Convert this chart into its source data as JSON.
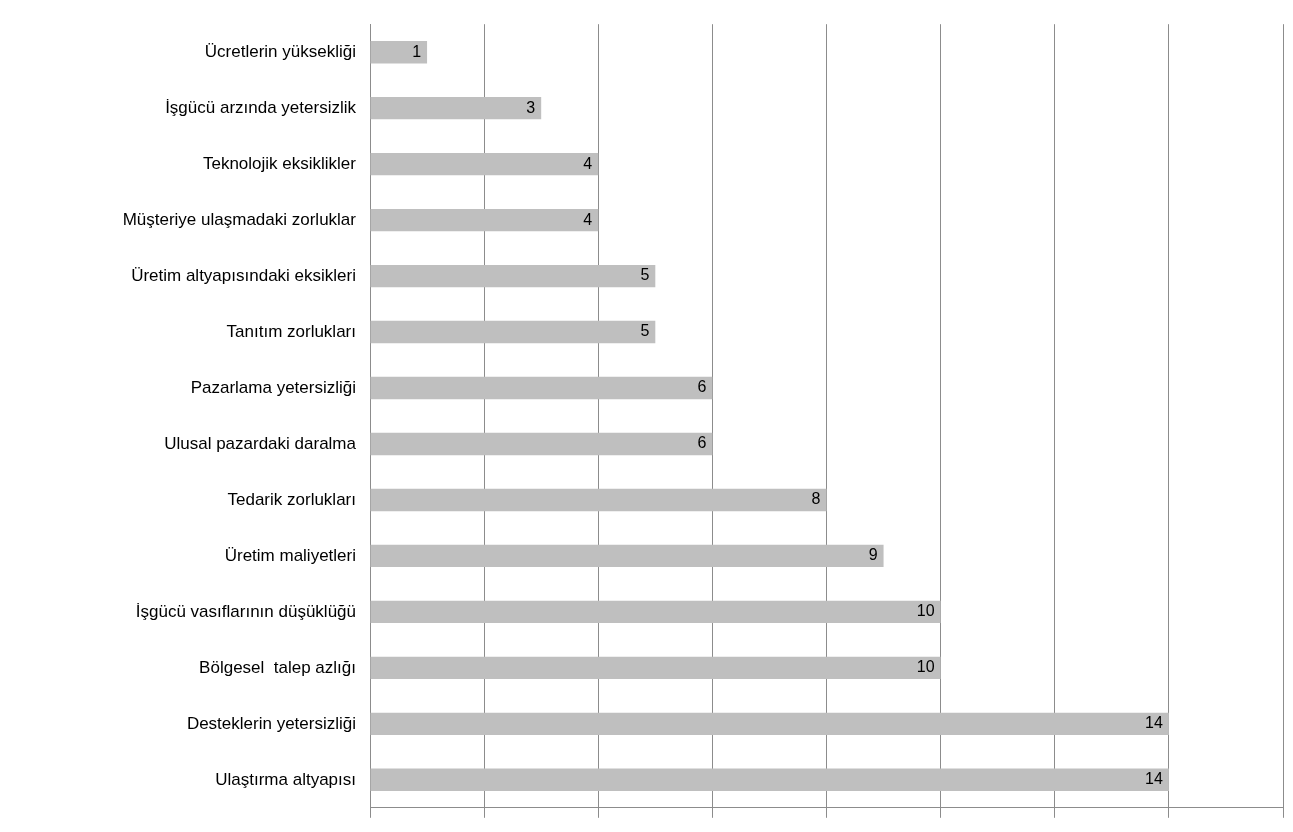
{
  "chart_data": {
    "type": "bar",
    "orientation": "horizontal",
    "categories": [
      "Ücretlerin yüksekliği",
      "İşgücü arzında yetersizlik",
      "Teknolojik eksiklikler",
      "Müşteriye ulaşmadaki zorluklar",
      "Üretim altyapısındaki eksikleri",
      "Tanıtım zorlukları",
      "Pazarlama yetersizliği",
      "Ulusal pazardaki daralma",
      "Tedarik zorlukları",
      "Üretim maliyetleri",
      "İşgücü vasıflarının düşüklüğü",
      "Bölgesel  talep azlığı",
      "Desteklerin yetersizliği",
      "Ulaştırma altyapısı"
    ],
    "values": [
      1,
      3,
      4,
      4,
      5,
      5,
      6,
      6,
      8,
      9,
      10,
      10,
      14,
      14
    ],
    "color": "#bfbfbf",
    "xlim": [
      0,
      16
    ],
    "xticks": [
      {
        "value": 0,
        "label": null
      },
      {
        "value": 2,
        "label": null
      },
      {
        "value": 4,
        "label": null
      },
      {
        "value": 6,
        "label": null
      },
      {
        "value": 8,
        "label": null
      },
      {
        "value": 10,
        "label": null
      },
      {
        "value": 12,
        "label": null
      },
      {
        "value": 14,
        "label": null
      },
      {
        "value": 16,
        "label": null
      }
    ],
    "grid": "x",
    "tick_labels": "y",
    "data_labels": true,
    "legend": false
  }
}
